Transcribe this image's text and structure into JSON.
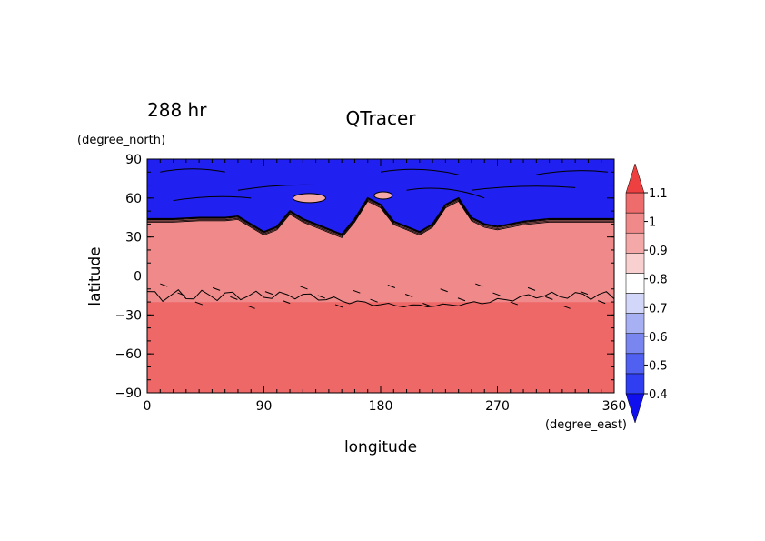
{
  "time_label": "288 hr",
  "chart_data": {
    "type": "heatmap",
    "title": "QTracer",
    "xlabel": "longitude",
    "ylabel": "latitude",
    "x_units": "(degree_east)",
    "y_units": "(degree_north)",
    "xlim": [
      0,
      360
    ],
    "ylim": [
      -90,
      90
    ],
    "x_ticks": [
      "0",
      "90",
      "180",
      "270",
      "360"
    ],
    "y_ticks": [
      "90",
      "60",
      "30",
      "0",
      "−30",
      "−60",
      "−90"
    ],
    "colorbar": {
      "levels": [
        0.4,
        0.5,
        0.6,
        0.7,
        0.8,
        0.9,
        1,
        1.1
      ],
      "labels": [
        "0.4",
        "0.5",
        "0.6",
        "0.7",
        "0.8",
        "0.9",
        "1",
        "1.1"
      ],
      "colors": [
        "#1010ee",
        "#2e3ef0",
        "#5060f0",
        "#7a86f0",
        "#a8b0f4",
        "#d2d6f8",
        "#ffffff",
        "#f8d0d0",
        "#f4a8a8",
        "#f08a8a",
        "#ee6c6c",
        "#ee4040"
      ]
    },
    "regions": [
      {
        "name": "polar-band-north",
        "lat_range": [
          47,
          90
        ],
        "value_range": [
          0.4,
          0.5
        ]
      },
      {
        "name": "midlatitude-and-tropics",
        "lat_range": [
          -10,
          45
        ],
        "value": 0.95
      },
      {
        "name": "southern-band",
        "lat_range": [
          -90,
          -20
        ],
        "value": 1.05
      }
    ],
    "front": {
      "lon": [
        0,
        20,
        40,
        60,
        70,
        80,
        90,
        100,
        110,
        120,
        130,
        140,
        150,
        160,
        170,
        180,
        190,
        200,
        210,
        220,
        230,
        240,
        250,
        260,
        270,
        290,
        310,
        330,
        360
      ],
      "lat": [
        44,
        44,
        45,
        45,
        46,
        40,
        34,
        38,
        50,
        44,
        40,
        36,
        32,
        44,
        60,
        55,
        42,
        38,
        34,
        40,
        55,
        60,
        45,
        40,
        38,
        42,
        44,
        44,
        44
      ]
    },
    "grid": false
  },
  "colors": {
    "polar": "#2020f0",
    "tropics": "#f08a8a",
    "south": "#ee6868",
    "highlight": "#f4a8a8"
  }
}
